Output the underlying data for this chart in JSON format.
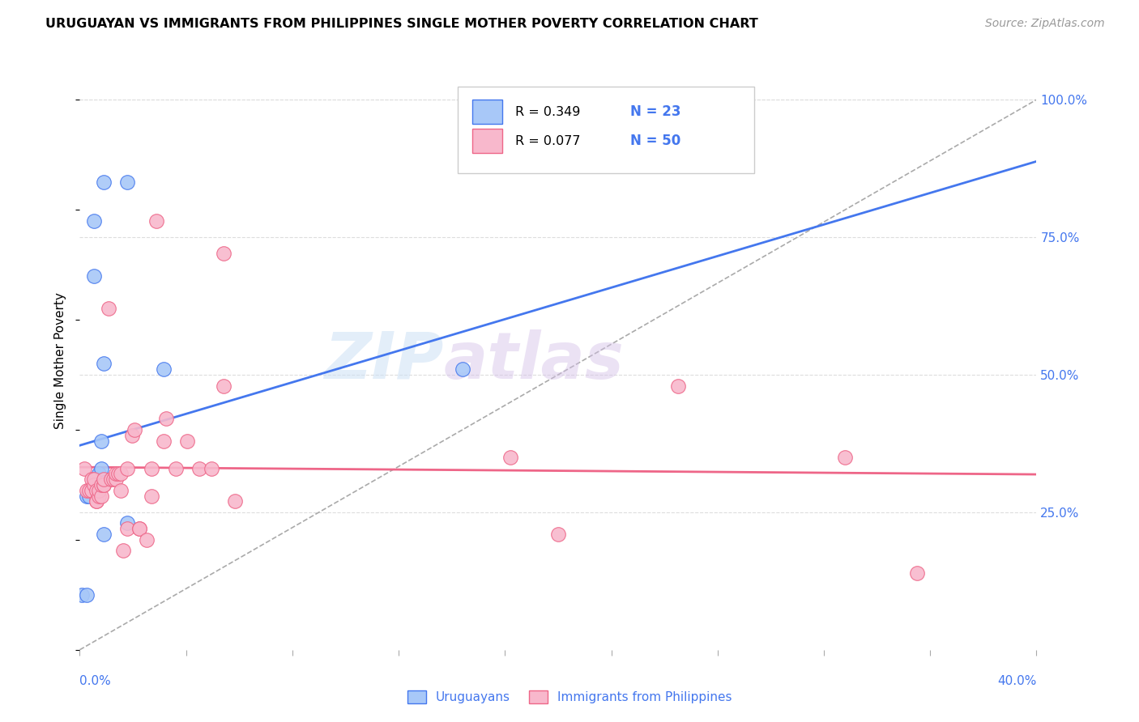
{
  "title": "URUGUAYAN VS IMMIGRANTS FROM PHILIPPINES SINGLE MOTHER POVERTY CORRELATION CHART",
  "source": "Source: ZipAtlas.com",
  "ylabel": "Single Mother Poverty",
  "ylabel_right_ticks": [
    "100.0%",
    "75.0%",
    "50.0%",
    "25.0%"
  ],
  "ylabel_right_vals": [
    100.0,
    75.0,
    50.0,
    25.0
  ],
  "legend1_r": "R = 0.349",
  "legend1_n": "N = 23",
  "legend2_r": "R = 0.077",
  "legend2_n": "N = 50",
  "uruguayan_color": "#a8c8f8",
  "philippines_color": "#f8b8cc",
  "trend_blue": "#4477ee",
  "trend_pink": "#ee6688",
  "trend_gray": "#aaaaaa",
  "uruguayan_x": [
    0.1,
    0.3,
    0.3,
    0.4,
    0.5,
    0.5,
    0.6,
    0.6,
    0.7,
    0.7,
    0.7,
    0.7,
    0.8,
    0.8,
    0.9,
    0.9,
    1.0,
    1.0,
    1.0,
    2.0,
    2.0,
    3.5,
    16.0
  ],
  "uruguayan_y": [
    10.0,
    10.0,
    28.0,
    28.0,
    29.0,
    29.0,
    68.0,
    78.0,
    29.0,
    29.0,
    30.0,
    31.0,
    31.0,
    32.0,
    33.0,
    38.0,
    21.0,
    52.0,
    85.0,
    85.0,
    23.0,
    51.0,
    51.0
  ],
  "philippines_x": [
    0.2,
    0.3,
    0.4,
    0.5,
    0.5,
    0.6,
    0.6,
    0.7,
    0.7,
    0.7,
    0.8,
    0.8,
    0.9,
    0.9,
    1.0,
    1.0,
    1.0,
    1.2,
    1.3,
    1.4,
    1.5,
    1.5,
    1.6,
    1.7,
    1.7,
    1.8,
    2.0,
    2.0,
    2.2,
    2.3,
    2.5,
    2.5,
    2.8,
    3.0,
    3.0,
    3.2,
    3.5,
    3.6,
    4.0,
    4.5,
    5.0,
    5.5,
    6.0,
    6.0,
    6.5,
    18.0,
    20.0,
    25.0,
    32.0,
    35.0
  ],
  "philippines_y": [
    33.0,
    29.0,
    29.0,
    29.0,
    31.0,
    30.0,
    31.0,
    27.0,
    27.0,
    29.0,
    28.0,
    29.0,
    28.0,
    30.0,
    30.0,
    30.0,
    31.0,
    62.0,
    31.0,
    31.0,
    31.0,
    32.0,
    32.0,
    29.0,
    32.0,
    18.0,
    22.0,
    33.0,
    39.0,
    40.0,
    22.0,
    22.0,
    20.0,
    33.0,
    28.0,
    78.0,
    38.0,
    42.0,
    33.0,
    38.0,
    33.0,
    33.0,
    72.0,
    48.0,
    27.0,
    35.0,
    21.0,
    48.0,
    35.0,
    14.0
  ],
  "xlim": [
    0.0,
    40.0
  ],
  "ylim": [
    0.0,
    105.0
  ],
  "watermark_text": "ZIP",
  "watermark_text2": "atlas",
  "background_color": "#ffffff",
  "grid_color": "#dddddd"
}
